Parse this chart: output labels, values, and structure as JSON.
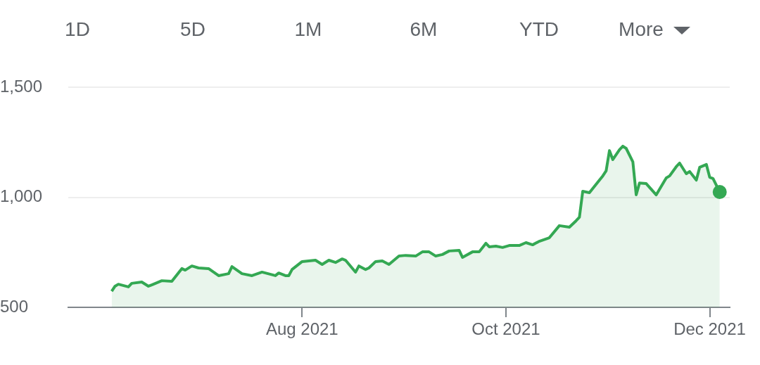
{
  "chart_data": {
    "type": "area",
    "annotations": [
      "1D",
      "5D",
      "1M",
      "6M",
      "YTD",
      "More"
    ],
    "x": [
      "2021-06-05",
      "2021-06-06",
      "2021-06-07",
      "2021-06-10",
      "2021-06-11",
      "2021-06-14",
      "2021-06-16",
      "2021-06-17",
      "2021-06-20",
      "2021-06-23",
      "2021-06-26",
      "2021-06-27",
      "2021-06-29",
      "2021-07-01",
      "2021-07-04",
      "2021-07-07",
      "2021-07-10",
      "2021-07-11",
      "2021-07-14",
      "2021-07-17",
      "2021-07-20",
      "2021-07-24",
      "2021-07-25",
      "2021-07-27",
      "2021-07-28",
      "2021-07-29",
      "2021-08-01",
      "2021-08-05",
      "2021-08-07",
      "2021-08-09",
      "2021-08-11",
      "2021-08-13",
      "2021-08-14",
      "2021-08-17",
      "2021-08-18",
      "2021-08-20",
      "2021-08-21",
      "2021-08-23",
      "2021-08-25",
      "2021-08-27",
      "2021-08-30",
      "2021-09-01",
      "2021-09-04",
      "2021-09-06",
      "2021-09-08",
      "2021-09-10",
      "2021-09-12",
      "2021-09-14",
      "2021-09-17",
      "2021-09-18",
      "2021-09-21",
      "2021-09-23",
      "2021-09-25",
      "2021-09-26",
      "2021-09-28",
      "2021-09-30",
      "2021-10-02",
      "2021-10-05",
      "2021-10-07",
      "2021-10-09",
      "2021-10-11",
      "2021-10-14",
      "2021-10-17",
      "2021-10-20",
      "2021-10-22",
      "2021-10-23",
      "2021-10-24",
      "2021-10-26",
      "2021-10-27",
      "2021-10-30",
      "2021-10-31",
      "2021-11-01",
      "2021-11-02",
      "2021-11-04",
      "2021-11-05",
      "2021-11-06",
      "2021-11-08",
      "2021-11-09",
      "2021-11-10",
      "2021-11-12",
      "2021-11-15",
      "2021-11-18",
      "2021-11-19",
      "2021-11-21",
      "2021-11-22",
      "2021-11-24",
      "2021-11-25",
      "2021-11-27",
      "2021-11-28",
      "2021-11-30",
      "2021-12-01",
      "2021-12-02",
      "2021-12-04"
    ],
    "series": [
      {
        "color": "#34a853",
        "values": [
          573,
          596,
          605,
          593,
          609,
          615,
          596,
          602,
          621,
          618,
          676,
          669,
          688,
          679,
          676,
          644,
          653,
          685,
          653,
          644,
          660,
          644,
          656,
          644,
          644,
          672,
          708,
          714,
          695,
          714,
          704,
          720,
          714,
          660,
          688,
          672,
          679,
          708,
          711,
          695,
          733,
          736,
          733,
          752,
          752,
          733,
          740,
          756,
          759,
          727,
          752,
          752,
          791,
          775,
          778,
          772,
          781,
          781,
          794,
          784,
          800,
          816,
          871,
          864,
          893,
          909,
          1027,
          1021,
          1040,
          1097,
          1120,
          1212,
          1171,
          1216,
          1232,
          1222,
          1161,
          1011,
          1065,
          1062,
          1011,
          1088,
          1097,
          1139,
          1155,
          1107,
          1117,
          1078,
          1136,
          1149,
          1091,
          1085,
          1024
        ]
      }
    ],
    "xlim": [
      "2021-05-23",
      "2021-12-07"
    ],
    "xticks": [
      {
        "value": "2021-08-01",
        "label": "Aug 2021"
      },
      {
        "value": "2021-10-01",
        "label": "Oct 2021"
      },
      {
        "value": "2021-12-01",
        "label": "Dec 2021"
      }
    ],
    "ylim": [
      500,
      1500
    ],
    "yticks": [
      {
        "value": 500,
        "label": "500"
      },
      {
        "value": 1000,
        "label": "1,000"
      },
      {
        "value": 1500,
        "label": "1,500"
      }
    ],
    "grid": "y",
    "legend": false
  }
}
